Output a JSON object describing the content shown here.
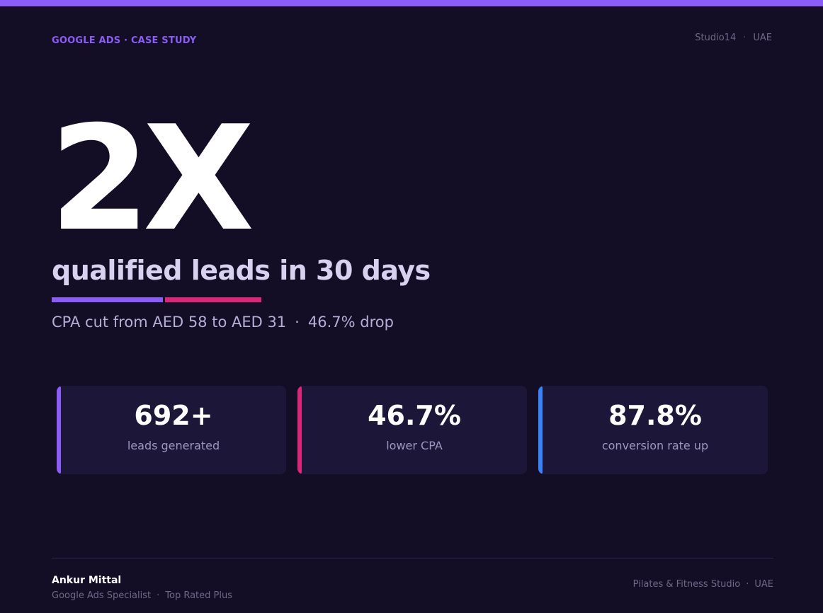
{
  "header": {
    "eyebrow": "GOOGLE ADS · CASE STUDY",
    "client_name": "Studio14",
    "separator": "·",
    "client_location": "UAE"
  },
  "hero": {
    "number": "2X",
    "caption": "qualified leads in 30 days",
    "subline_left": "CPA cut from AED 58 to AED 31",
    "subline_separator": "·",
    "subline_right": "46.7% drop"
  },
  "stats": [
    {
      "value": "692+",
      "label": "leads generated",
      "accent": "#8b5cf6"
    },
    {
      "value": "46.7%",
      "label": "lower CPA",
      "accent": "#db2777"
    },
    {
      "value": "87.8%",
      "label": "conversion rate up",
      "accent": "#3b82f6"
    }
  ],
  "footer": {
    "author_name": "Ankur Mittal",
    "author_title": "Google Ads Specialist",
    "author_separator": "·",
    "author_badge": "Top Rated Plus",
    "industry": "Pilates & Fitness Studio",
    "industry_separator": "·",
    "region": "UAE"
  },
  "colors": {
    "background": "#130e26",
    "brand_purple": "#8b5cf6",
    "brand_pink": "#db2777",
    "brand_blue": "#3b82f6"
  }
}
